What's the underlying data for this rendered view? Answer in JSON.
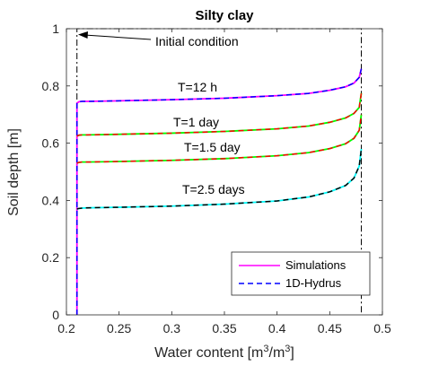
{
  "chart_data": {
    "type": "line",
    "title": "Silty clay",
    "xlabel": "Water content [m",
    "xlabel_sup1": "3",
    "xlabel_mid": "/m",
    "xlabel_sup2": "3",
    "xlabel_end": "]",
    "ylabel": "Soil depth [m]",
    "xlim": [
      0.2,
      0.5
    ],
    "ylim": [
      0,
      1
    ],
    "xticks": [
      "0.2",
      "0.25",
      "0.3",
      "0.35",
      "0.4",
      "0.45",
      "0.5"
    ],
    "yticks": [
      "0",
      "0.2",
      "0.4",
      "0.6",
      "0.8",
      "1"
    ],
    "grid": false,
    "legend_position": "bottom-right",
    "legend": [
      {
        "label": "Simulations",
        "color": "#ff00ff",
        "dash": "solid"
      },
      {
        "label": "1D-Hydrus",
        "color": "#0000ff",
        "dash": "dashed"
      }
    ],
    "initial_condition": {
      "label": "Initial condition",
      "color": "#000000",
      "x": [
        0.21,
        0.21,
        0.48,
        0.48
      ],
      "y": [
        0,
        1,
        1,
        0
      ]
    },
    "series": [
      {
        "label": "T=12 h",
        "sim_color": "#ff00ff",
        "ref_color": "#0000ff",
        "x": [
          0.21,
          0.21,
          0.212,
          0.215,
          0.22,
          0.25,
          0.3,
          0.35,
          0.4,
          0.43,
          0.45,
          0.465,
          0.473,
          0.478,
          0.48
        ],
        "y": [
          0,
          0.74,
          0.745,
          0.746,
          0.746,
          0.748,
          0.752,
          0.757,
          0.766,
          0.774,
          0.785,
          0.797,
          0.81,
          0.83,
          0.86
        ]
      },
      {
        "label": "T=1 day",
        "sim_color": "#00ff00",
        "ref_color": "#ff0000",
        "x": [
          0.21,
          0.212,
          0.215,
          0.22,
          0.25,
          0.3,
          0.35,
          0.4,
          0.43,
          0.45,
          0.465,
          0.473,
          0.478,
          0.48
        ],
        "y": [
          0.625,
          0.628,
          0.629,
          0.629,
          0.631,
          0.635,
          0.641,
          0.65,
          0.66,
          0.673,
          0.688,
          0.704,
          0.725,
          0.775
        ]
      },
      {
        "label": "T=1.5 day",
        "sim_color": "#00ff00",
        "ref_color": "#ff0000",
        "x": [
          0.21,
          0.212,
          0.215,
          0.22,
          0.25,
          0.3,
          0.35,
          0.4,
          0.43,
          0.45,
          0.465,
          0.473,
          0.478,
          0.48
        ],
        "y": [
          0.53,
          0.533,
          0.534,
          0.534,
          0.536,
          0.54,
          0.546,
          0.556,
          0.567,
          0.581,
          0.598,
          0.617,
          0.645,
          0.7
        ]
      },
      {
        "label": "T=2.5 days",
        "sim_color": "#00ffff",
        "ref_color": "#000000",
        "x": [
          0.21,
          0.212,
          0.215,
          0.22,
          0.25,
          0.3,
          0.35,
          0.4,
          0.43,
          0.45,
          0.465,
          0.473,
          0.478,
          0.48
        ],
        "y": [
          0.37,
          0.372,
          0.373,
          0.374,
          0.376,
          0.38,
          0.387,
          0.398,
          0.412,
          0.43,
          0.452,
          0.478,
          0.52,
          0.58
        ]
      }
    ]
  }
}
